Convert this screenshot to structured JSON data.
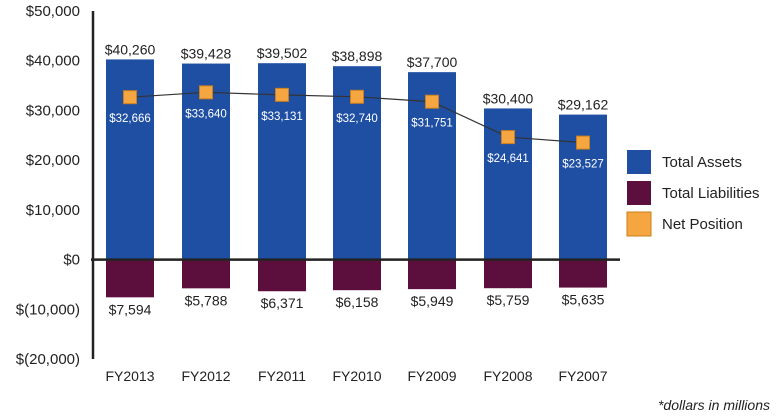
{
  "chart_data": {
    "type": "bar",
    "categories": [
      "FY2013",
      "FY2012",
      "FY2011",
      "FY2010",
      "FY2009",
      "FY2008",
      "FY2007"
    ],
    "series": [
      {
        "name": "Total Assets",
        "type": "bar",
        "color": "#1f4fa3",
        "values": [
          40260,
          39428,
          39502,
          38898,
          37700,
          30400,
          29162
        ],
        "labels": [
          "$40,260",
          "$39,428",
          "$39,502",
          "$38,898",
          "$37,700",
          "$30,400",
          "$29,162"
        ]
      },
      {
        "name": "Total Liabilities",
        "type": "bar",
        "color": "#5c0f3d",
        "values": [
          -7594,
          -5788,
          -6371,
          -6158,
          -5949,
          -5759,
          -5635
        ],
        "labels": [
          "$7,594",
          "$5,788",
          "$6,371",
          "$6,158",
          "$5,949",
          "$5,759",
          "$5,635"
        ]
      },
      {
        "name": "Net Position",
        "type": "line",
        "color": "#f5a640",
        "values": [
          32666,
          33640,
          33131,
          32740,
          31751,
          24641,
          23527
        ],
        "labels": [
          "$32,666",
          "$33,640",
          "$33,131",
          "$32,740",
          "$31,751",
          "$24,641",
          "$23,527"
        ]
      }
    ],
    "ylim": [
      -20000,
      50000
    ],
    "yticks": [
      50000,
      40000,
      30000,
      20000,
      10000,
      0,
      -10000,
      -20000
    ],
    "ytick_labels": [
      "$50,000",
      "$40,000",
      "$30,000",
      "$20,000",
      "$10,000",
      "$0",
      "$(10,000)",
      "$(20,000)"
    ],
    "legend_position": "right",
    "grid": false,
    "annotation": "*dollars in millions"
  }
}
